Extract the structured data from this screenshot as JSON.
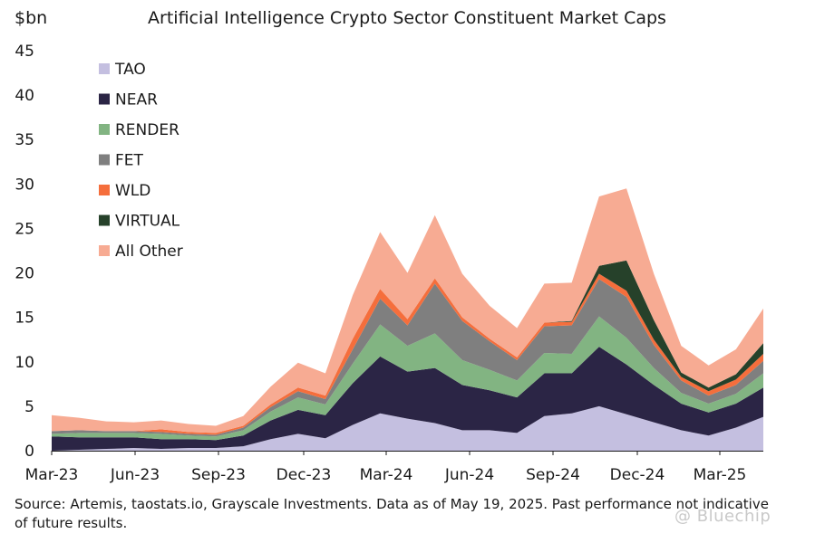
{
  "chart_data": {
    "type": "area",
    "stacked": true,
    "title": "Artificial Intelligence Crypto Sector Constituent Market Caps",
    "ylabel": "$bn",
    "xlabel": "",
    "ylim": [
      0,
      45
    ],
    "yticks": [
      "0",
      "5",
      "10",
      "15",
      "20",
      "25",
      "30",
      "35",
      "40",
      "45"
    ],
    "xticks": [
      "Mar-23",
      "Jun-23",
      "Sep-23",
      "Dec-23",
      "Mar-24",
      "Jun-24",
      "Sep-24",
      "Dec-24",
      "Mar-25"
    ],
    "grid": false,
    "legend_position": "top-left",
    "x": [
      "2023-03",
      "2023-04",
      "2023-05",
      "2023-06",
      "2023-07",
      "2023-08",
      "2023-09",
      "2023-10",
      "2023-11",
      "2023-12",
      "2024-01",
      "2024-02",
      "2024-03",
      "2024-04",
      "2024-05",
      "2024-06",
      "2024-07",
      "2024-08",
      "2024-09",
      "2024-10",
      "2024-11",
      "2024-12",
      "2025-01",
      "2025-02",
      "2025-03",
      "2025-04",
      "2025-05"
    ],
    "series": [
      {
        "name": "TAO",
        "color": "#c4bfe0",
        "values": [
          0.0,
          0.1,
          0.2,
          0.3,
          0.2,
          0.3,
          0.3,
          0.5,
          1.3,
          1.9,
          1.4,
          2.9,
          4.2,
          3.6,
          3.1,
          2.3,
          2.3,
          2.0,
          3.9,
          4.2,
          5.0,
          4.1,
          3.2,
          2.3,
          1.7,
          2.6,
          3.8
        ]
      },
      {
        "name": "NEAR",
        "color": "#2b2545",
        "values": [
          1.6,
          1.4,
          1.3,
          1.2,
          1.1,
          1.0,
          0.9,
          1.2,
          2.1,
          2.7,
          2.6,
          4.7,
          6.4,
          5.3,
          6.2,
          5.1,
          4.5,
          4.0,
          4.8,
          4.5,
          6.7,
          5.6,
          4.2,
          3.0,
          2.6,
          2.7,
          3.3
        ]
      },
      {
        "name": "RENDER",
        "color": "#82b482",
        "values": [
          0.3,
          0.5,
          0.5,
          0.5,
          0.6,
          0.4,
          0.4,
          0.6,
          1.0,
          1.4,
          1.2,
          2.2,
          3.6,
          2.9,
          3.9,
          2.8,
          2.3,
          1.9,
          2.3,
          2.2,
          3.4,
          3.0,
          1.9,
          1.2,
          1.0,
          1.1,
          1.6
        ]
      },
      {
        "name": "FET",
        "color": "#7f7f7f",
        "values": [
          0.3,
          0.3,
          0.2,
          0.2,
          0.2,
          0.2,
          0.2,
          0.3,
          0.5,
          0.7,
          0.6,
          1.6,
          2.9,
          2.3,
          5.6,
          4.4,
          3.2,
          2.3,
          3.0,
          3.2,
          4.2,
          4.6,
          2.6,
          1.4,
          0.9,
          1.0,
          1.4
        ]
      },
      {
        "name": "WLD",
        "color": "#f56e3c",
        "values": [
          0.0,
          0.0,
          0.0,
          0.0,
          0.3,
          0.2,
          0.2,
          0.2,
          0.3,
          0.4,
          0.4,
          1.2,
          1.1,
          0.7,
          0.6,
          0.4,
          0.3,
          0.3,
          0.4,
          0.4,
          0.6,
          0.7,
          0.6,
          0.4,
          0.5,
          0.6,
          0.8
        ]
      },
      {
        "name": "VIRTUAL",
        "color": "#26412a",
        "values": [
          0.0,
          0.0,
          0.0,
          0.0,
          0.0,
          0.0,
          0.0,
          0.0,
          0.0,
          0.0,
          0.0,
          0.0,
          0.0,
          0.0,
          0.0,
          0.0,
          0.0,
          0.0,
          0.0,
          0.1,
          0.9,
          3.4,
          2.2,
          0.5,
          0.4,
          0.6,
          1.2
        ]
      },
      {
        "name": "All Other",
        "color": "#f7ab93",
        "values": [
          1.8,
          1.4,
          1.1,
          1.0,
          1.0,
          0.9,
          0.8,
          1.1,
          2.0,
          2.8,
          2.5,
          4.9,
          6.4,
          5.2,
          7.1,
          4.9,
          3.7,
          3.3,
          4.4,
          4.3,
          7.8,
          8.1,
          5.2,
          3.0,
          2.5,
          2.8,
          3.9
        ]
      }
    ]
  },
  "source_note": "Source: Artemis, taostats.io, Grayscale Investments. Data as of May 19, 2025. Past performance not indicative of future results.",
  "watermark": "@ Bluechip"
}
